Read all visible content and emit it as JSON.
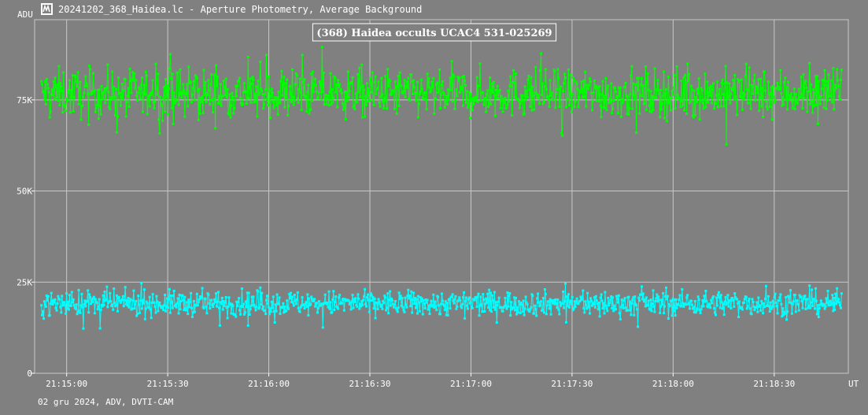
{
  "window": {
    "title": "20241202_368_Haidea.lc - Aperture Photometry, Average Background",
    "icon": "lightcurve-app-icon"
  },
  "colors": {
    "background": "#808080",
    "grid": "#c8c8c8",
    "axis": "#ffffff",
    "target_series": "#00ff00",
    "background_series": "#00ffff"
  },
  "chart_data": {
    "type": "line",
    "title": "(368) Haidea occults UCAC4 531-025269",
    "xlabel": "UT",
    "ylabel": "ADU",
    "footer": "02 gru 2024, ADV, DVTI-CAM",
    "ylim": [
      0,
      97000
    ],
    "y_ticks": [
      0,
      25000,
      50000,
      75000
    ],
    "y_tick_labels": [
      "0",
      "25K",
      "50K",
      "75K"
    ],
    "x_range_seconds": [
      -9.5,
      232
    ],
    "x_ticks": [
      "21:15:00",
      "21:15:30",
      "21:16:00",
      "21:16:30",
      "21:17:00",
      "21:17:30",
      "21:18:00",
      "21:18:30"
    ],
    "grid": true,
    "series": [
      {
        "role": "target",
        "color": "#00ff00",
        "mean": 76800,
        "scatter": 3500,
        "points": 1050
      },
      {
        "role": "background",
        "color": "#00ffff",
        "mean": 19200,
        "scatter": 1800,
        "points": 1050
      }
    ]
  }
}
